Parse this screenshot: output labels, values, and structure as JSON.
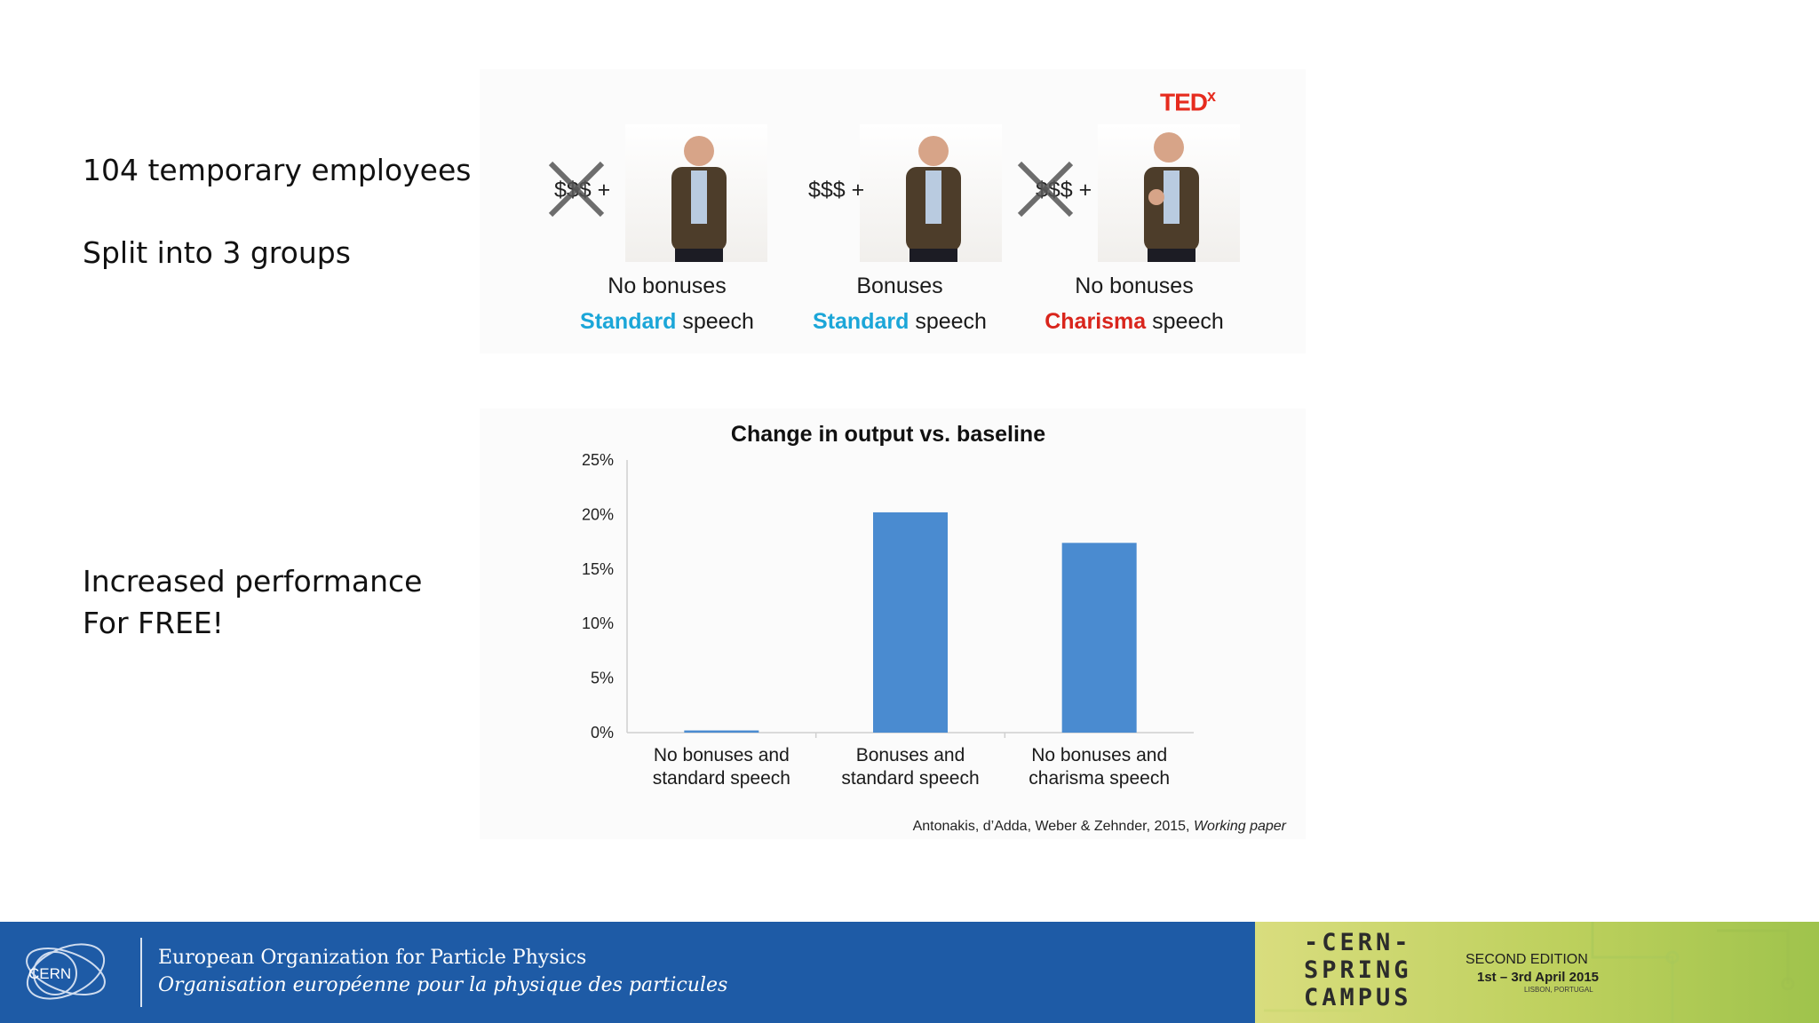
{
  "left_text": {
    "line1": "104 temporary employees",
    "line2": "Split into 3 groups",
    "line3": "Increased performance",
    "line4": "For FREE!"
  },
  "top_panel": {
    "logo_text": "TED",
    "logo_sup": "x",
    "conditions": [
      {
        "money": "$$$ +",
        "crossed": true,
        "line1": "No bonuses",
        "speech_type": "Standard",
        "speech_word": " speech"
      },
      {
        "money": "$$$ +",
        "crossed": false,
        "line1": "Bonuses",
        "speech_type": "Standard",
        "speech_word": " speech"
      },
      {
        "money": "$$$ +",
        "crossed": true,
        "line1": "No bonuses",
        "speech_type": "Charisma",
        "speech_word": " speech"
      }
    ]
  },
  "chart_data": {
    "type": "bar",
    "title": "Change in output vs. baseline",
    "categories": [
      [
        "No bonuses and",
        "standard speech"
      ],
      [
        "Bonuses and",
        "standard speech"
      ],
      [
        "No bonuses and",
        "charisma speech"
      ]
    ],
    "values": [
      0.2,
      20.2,
      17.4
    ],
    "ylim": [
      0,
      25
    ],
    "yticks": [
      0,
      5,
      10,
      15,
      20,
      25
    ],
    "ytick_labels": [
      "0%",
      "5%",
      "10%",
      "15%",
      "20%",
      "25%"
    ],
    "bar_color": "#4a8bd0",
    "grid": false,
    "legend": "none"
  },
  "citation": {
    "text": "Antonakis, d’Adda, Weber & Zehnder, 2015, ",
    "italic": "Working paper"
  },
  "footer": {
    "logo_text": "CERN",
    "org_en": "European Organization for Particle Physics",
    "org_fr": "Organisation européenne pour la physique des particules",
    "campus_lines": [
      "-CERN-",
      "SPRING",
      "CAMPUS"
    ],
    "edition": "SECOND EDITION",
    "dates": "1st – 3rd April 2015",
    "location": "LISBON, PORTUGAL",
    "blue": "#1e5ba6",
    "green": "#bdd05d"
  }
}
